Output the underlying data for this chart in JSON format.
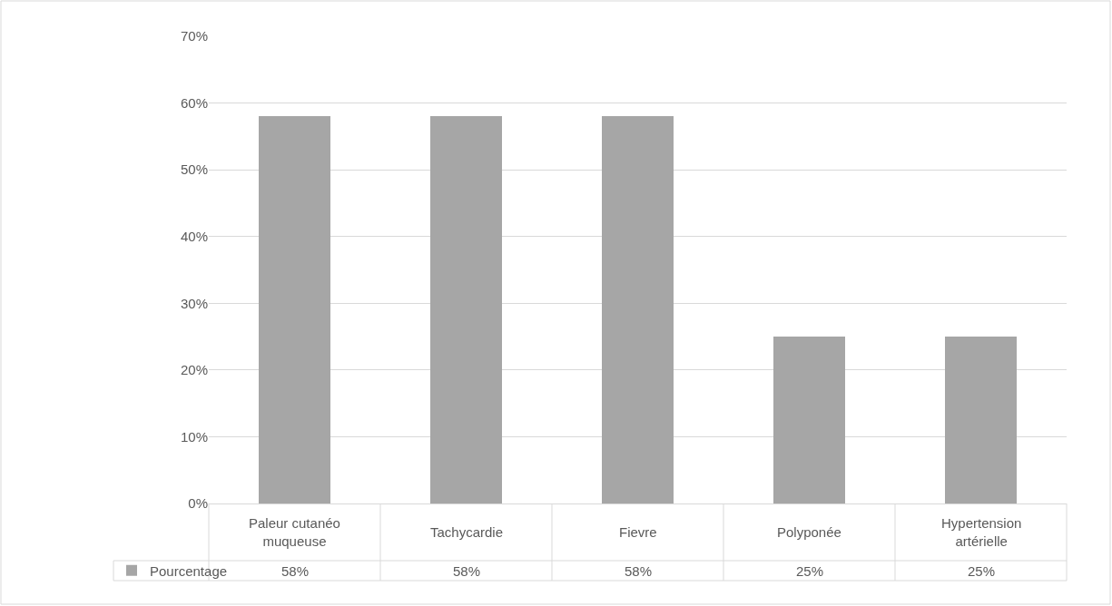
{
  "chart_data": {
    "type": "bar",
    "categories": [
      "Paleur cutanéo muqueuse",
      "Tachycardie",
      "Fievre",
      "Polyponée",
      "Hypertension artérielle"
    ],
    "series": [
      {
        "name": "Pourcentage",
        "color": "#a6a6a6",
        "values": [
          58,
          58,
          58,
          25,
          25
        ],
        "value_labels": [
          "58%",
          "58%",
          "58%",
          "25%",
          "25%"
        ]
      }
    ],
    "ylim": [
      0,
      70
    ],
    "yticks": [
      {
        "value": 0,
        "label": "0%"
      },
      {
        "value": 10,
        "label": "10%"
      },
      {
        "value": 20,
        "label": "20%"
      },
      {
        "value": 30,
        "label": "30%"
      },
      {
        "value": 40,
        "label": "40%"
      },
      {
        "value": 50,
        "label": "50%"
      },
      {
        "value": 60,
        "label": "60%"
      },
      {
        "value": 70,
        "label": "70%"
      }
    ],
    "grid": "y",
    "legend": "bottom left"
  }
}
